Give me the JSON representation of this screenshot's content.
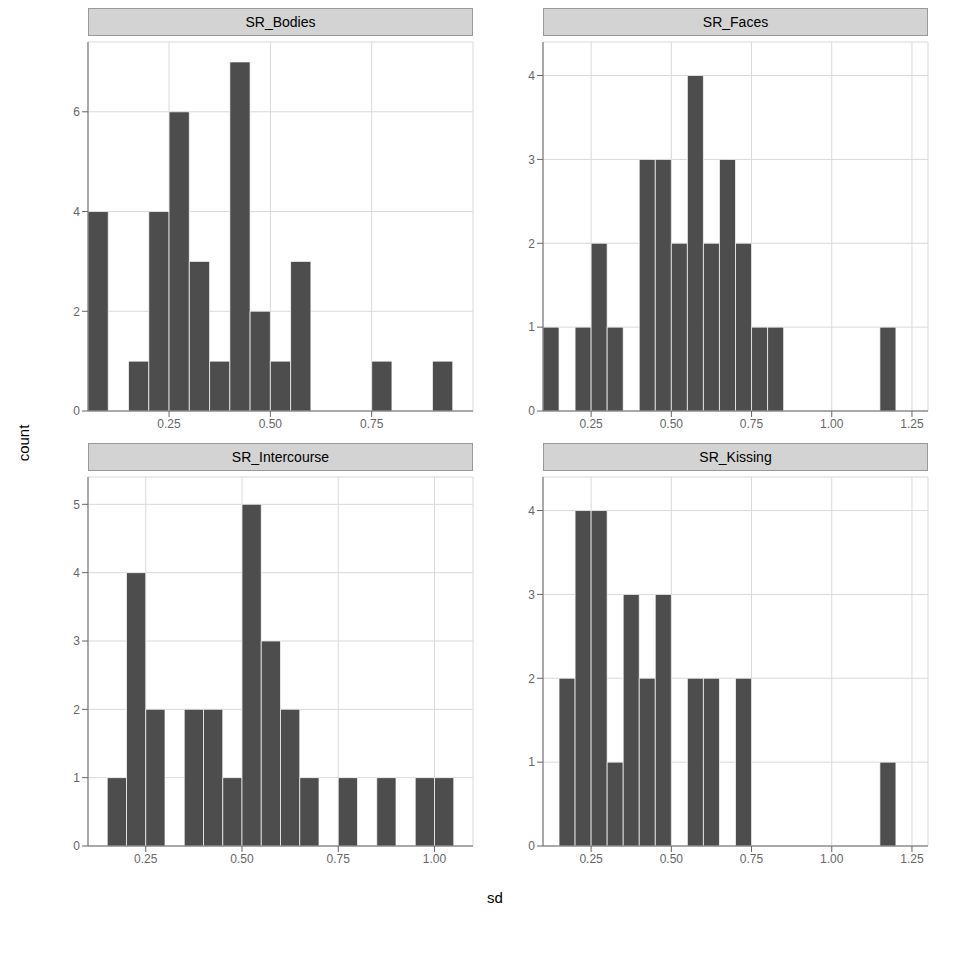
{
  "xlabel": "sd",
  "ylabel": "count",
  "chart_data": [
    {
      "type": "histogram",
      "title": "SR_Bodies",
      "color": "#4d4d4d",
      "grid": true,
      "bins": [
        0.05,
        0.1,
        0.15,
        0.2,
        0.25,
        0.3,
        0.35,
        0.4,
        0.45,
        0.5,
        0.55,
        0.6,
        0.65,
        0.7,
        0.75,
        0.8,
        0.85,
        0.9,
        0.95,
        1.0
      ],
      "values": [
        4,
        0,
        1,
        4,
        6,
        3,
        1,
        7,
        2,
        1,
        3,
        0,
        0,
        0,
        1,
        0,
        0,
        1,
        0
      ],
      "xlim": [
        0.05,
        1.0
      ],
      "ylim": [
        0,
        7.4
      ],
      "xticks": [
        0.25,
        {
          "value": 0.5,
          "label": "0.50"
        },
        0.75
      ],
      "yticks": [
        0,
        2,
        4,
        6
      ]
    },
    {
      "type": "histogram",
      "title": "SR_Faces",
      "color": "#4d4d4d",
      "grid": true,
      "bins": [
        0.1,
        0.15,
        0.2,
        0.25,
        0.3,
        0.35,
        0.4,
        0.45,
        0.5,
        0.55,
        0.6,
        0.65,
        0.7,
        0.75,
        0.8,
        0.85,
        0.9,
        0.95,
        1.0,
        1.05,
        1.1,
        1.15,
        1.2,
        1.25,
        1.3
      ],
      "values": [
        1,
        0,
        1,
        2,
        1,
        0,
        3,
        3,
        2,
        4,
        2,
        3,
        2,
        1,
        1,
        0,
        0,
        0,
        0,
        0,
        0,
        1,
        0,
        0
      ],
      "xlim": [
        0.1,
        1.3
      ],
      "ylim": [
        0,
        4.4
      ],
      "xticks": [
        0.25,
        {
          "value": 0.5,
          "label": "0.50"
        },
        0.75,
        {
          "value": 1,
          "label": "1.00"
        },
        1.25
      ],
      "yticks": [
        0,
        1,
        2,
        3,
        4
      ]
    },
    {
      "type": "histogram",
      "title": "SR_Intercourse",
      "color": "#4d4d4d",
      "grid": true,
      "bins": [
        0.1,
        0.15,
        0.2,
        0.25,
        0.3,
        0.35,
        0.4,
        0.45,
        0.5,
        0.55,
        0.6,
        0.65,
        0.7,
        0.75,
        0.8,
        0.85,
        0.9,
        0.95,
        1.0,
        1.05,
        1.1
      ],
      "values": [
        0,
        1,
        4,
        2,
        0,
        2,
        2,
        1,
        5,
        3,
        2,
        1,
        0,
        1,
        0,
        1,
        0,
        1,
        1,
        0
      ],
      "xlim": [
        0.1,
        1.1
      ],
      "ylim": [
        0,
        5.4
      ],
      "xticks": [
        0.25,
        {
          "value": 0.5,
          "label": "0.50"
        },
        0.75,
        {
          "value": 1,
          "label": "1.00"
        }
      ],
      "yticks": [
        0,
        1,
        2,
        3,
        4,
        5
      ]
    },
    {
      "type": "histogram",
      "title": "SR_Kissing",
      "color": "#4d4d4d",
      "grid": true,
      "bins": [
        0.1,
        0.15,
        0.2,
        0.25,
        0.3,
        0.35,
        0.4,
        0.45,
        0.5,
        0.55,
        0.6,
        0.65,
        0.7,
        0.75,
        0.8,
        0.85,
        0.9,
        0.95,
        1.0,
        1.05,
        1.1,
        1.15,
        1.2,
        1.25,
        1.3
      ],
      "values": [
        0,
        2,
        4,
        4,
        1,
        3,
        2,
        3,
        0,
        2,
        2,
        0,
        2,
        0,
        0,
        0,
        0,
        0,
        0,
        0,
        0,
        1,
        0,
        0
      ],
      "xlim": [
        0.1,
        1.3
      ],
      "ylim": [
        0,
        4.4
      ],
      "xticks": [
        0.25,
        {
          "value": 0.5,
          "label": "0.50"
        },
        0.75,
        {
          "value": 1,
          "label": "1.00"
        },
        1.25
      ],
      "yticks": [
        0,
        1,
        2,
        3,
        4
      ]
    }
  ]
}
